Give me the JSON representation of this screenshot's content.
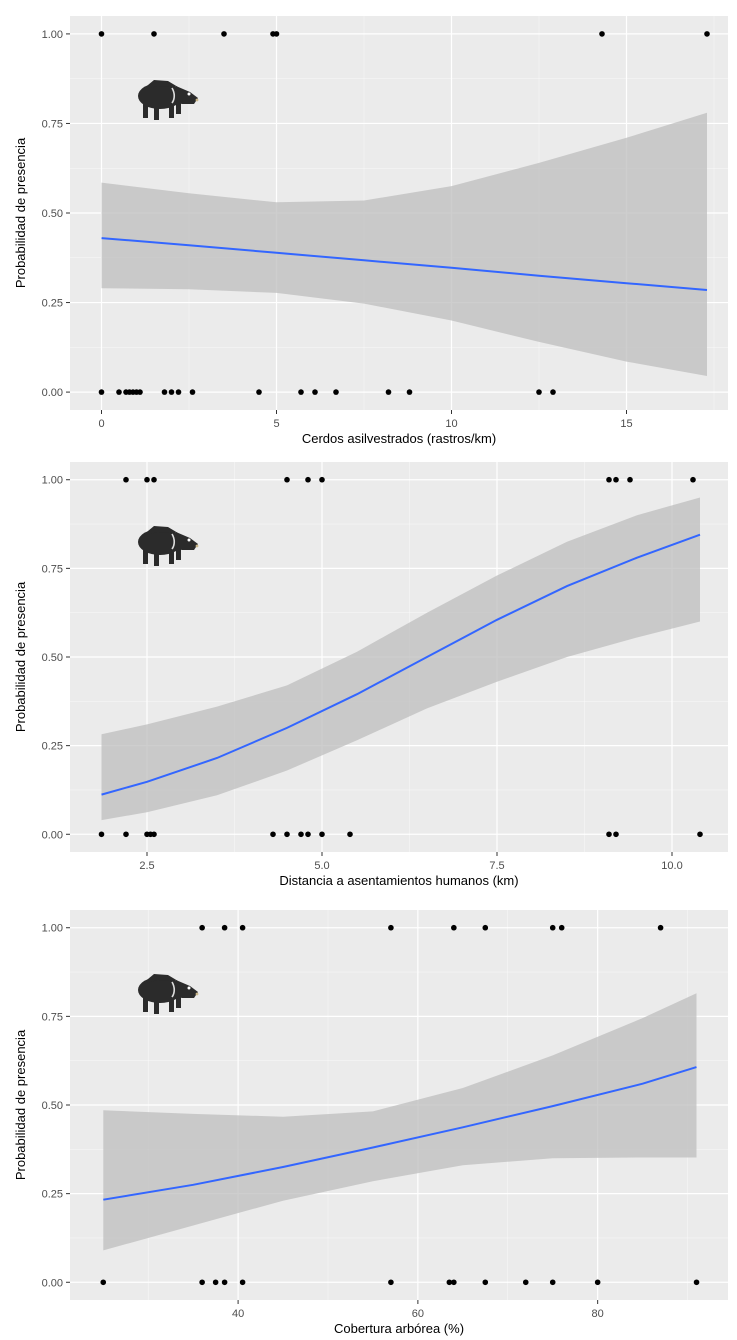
{
  "colors": {
    "panel_bg": "#ebebeb",
    "grid_major": "#ffffff",
    "ribbon": "#bdbdbd",
    "line": "#3366ff",
    "point": "#000000",
    "tick_text": "#4d4d4d",
    "animal": "#2b2b2b"
  },
  "chart_data": [
    {
      "type": "line",
      "title": "",
      "xlabel": "Cerdos asilvestrados (rastros/km)",
      "ylabel": "Probabilidad de presencia",
      "xlim": [
        -0.9,
        17.9
      ],
      "ylim": [
        -0.05,
        1.05
      ],
      "xticks": [
        0,
        5,
        10,
        15
      ],
      "xtick_labels": [
        "0",
        "5",
        "10",
        "15"
      ],
      "yticks": [
        0,
        0.25,
        0.5,
        0.75,
        1
      ],
      "ytick_labels": [
        "0.00",
        "0.25",
        "0.50",
        "0.75",
        "1.00"
      ],
      "grid": true,
      "icon": "peccary-icon",
      "fit": {
        "x": [
          0,
          2.5,
          5,
          7.5,
          10,
          12.5,
          15,
          17.3
        ],
        "y": [
          0.43,
          0.41,
          0.389,
          0.368,
          0.347,
          0.325,
          0.304,
          0.285
        ],
        "lower": [
          0.29,
          0.287,
          0.277,
          0.247,
          0.2,
          0.14,
          0.085,
          0.045
        ],
        "upper": [
          0.585,
          0.555,
          0.53,
          0.535,
          0.575,
          0.64,
          0.71,
          0.78
        ]
      },
      "points": {
        "x1": [
          0,
          1.5,
          3.5,
          4.9,
          5.0,
          14.3,
          17.3
        ],
        "x0": [
          0,
          0.5,
          0.7,
          0.8,
          0.9,
          1.0,
          1.1,
          1.8,
          2.0,
          2.2,
          2.6,
          4.5,
          5.7,
          6.1,
          6.7,
          8.2,
          8.8,
          12.5,
          12.9
        ]
      }
    },
    {
      "type": "line",
      "title": "",
      "xlabel": "Distancia a asentamientos humanos (km)",
      "ylabel": "Probabilidad de presencia",
      "xlim": [
        1.4,
        10.8
      ],
      "ylim": [
        -0.05,
        1.05
      ],
      "xticks": [
        2.5,
        5.0,
        7.5,
        10.0
      ],
      "xtick_labels": [
        "2.5",
        "5.0",
        "7.5",
        "10.0"
      ],
      "yticks": [
        0,
        0.25,
        0.5,
        0.75,
        1
      ],
      "ytick_labels": [
        "0.00",
        "0.25",
        "0.50",
        "0.75",
        "1.00"
      ],
      "grid": true,
      "icon": "peccary-icon",
      "fit": {
        "x": [
          1.85,
          2.5,
          3.5,
          4.5,
          5.5,
          6.5,
          7.5,
          8.5,
          9.5,
          10.4
        ],
        "y": [
          0.112,
          0.148,
          0.215,
          0.3,
          0.395,
          0.5,
          0.605,
          0.7,
          0.78,
          0.845
        ],
        "lower": [
          0.04,
          0.062,
          0.11,
          0.18,
          0.265,
          0.355,
          0.43,
          0.5,
          0.555,
          0.6
        ],
        "upper": [
          0.282,
          0.31,
          0.36,
          0.42,
          0.515,
          0.625,
          0.73,
          0.825,
          0.9,
          0.95
        ]
      },
      "points": {
        "x1": [
          2.2,
          2.5,
          2.6,
          4.5,
          4.8,
          5.0,
          9.1,
          9.2,
          9.4,
          10.3
        ],
        "x0": [
          1.85,
          2.2,
          2.5,
          2.55,
          2.6,
          4.3,
          4.5,
          4.7,
          4.8,
          5.0,
          5.4,
          9.1,
          9.2,
          10.4
        ]
      }
    },
    {
      "type": "line",
      "title": "",
      "xlabel": "Cobertura arbórea (%)",
      "ylabel": "Probabilidad de presencia",
      "xlim": [
        21.3,
        94.5
      ],
      "ylim": [
        -0.05,
        1.05
      ],
      "xticks": [
        40,
        60,
        80
      ],
      "xtick_labels": [
        "40",
        "60",
        "80"
      ],
      "yticks": [
        0,
        0.25,
        0.5,
        0.75,
        1
      ],
      "ytick_labels": [
        "0.00",
        "0.25",
        "0.50",
        "0.75",
        "1.00"
      ],
      "grid": true,
      "icon": "peccary-icon",
      "fit": {
        "x": [
          25,
          35,
          45,
          55,
          65,
          75,
          85,
          91
        ],
        "y": [
          0.233,
          0.275,
          0.325,
          0.38,
          0.437,
          0.497,
          0.56,
          0.607
        ],
        "lower": [
          0.09,
          0.16,
          0.23,
          0.285,
          0.33,
          0.35,
          0.352,
          0.352
        ],
        "upper": [
          0.485,
          0.475,
          0.467,
          0.482,
          0.548,
          0.64,
          0.745,
          0.815
        ]
      },
      "points": {
        "x1": [
          36,
          38.5,
          40.5,
          57,
          64,
          67.5,
          75,
          76,
          87
        ],
        "x0": [
          25,
          36,
          37.5,
          38.5,
          40.5,
          57,
          63.5,
          64,
          67.5,
          72,
          75,
          80,
          91
        ]
      }
    }
  ]
}
